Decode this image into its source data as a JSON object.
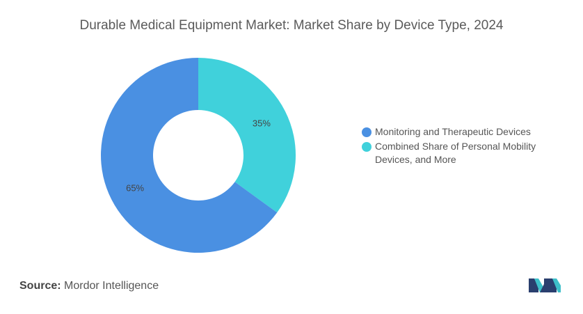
{
  "title": "Durable Medical Equipment Market: Market Share by Device Type, 2024",
  "source_label": "Source:",
  "source_value": "Mordor Intelligence",
  "chart_data": {
    "type": "pie",
    "donut": true,
    "title": "Durable Medical Equipment Market: Market Share by Device Type, 2024",
    "series": [
      {
        "name": "Combined Share of Personal Mobility Devices, and More",
        "value": 35,
        "label": "35%",
        "color": "#40d1db"
      },
      {
        "name": "Monitoring and Therapeutic Devices",
        "value": 65,
        "label": "65%",
        "color": "#4a90e2"
      }
    ],
    "legend": {
      "placement": "right",
      "entries": [
        {
          "label": "Monitoring and Therapeutic Devices",
          "color": "#4a90e2"
        },
        {
          "label": "Combined Share of Personal Mobility Devices, and More",
          "color": "#40d1db"
        }
      ]
    }
  },
  "logo": {
    "icon": "mordor-intelligence-logo",
    "colors": [
      "#2a3f6e",
      "#3dbfc9"
    ]
  }
}
